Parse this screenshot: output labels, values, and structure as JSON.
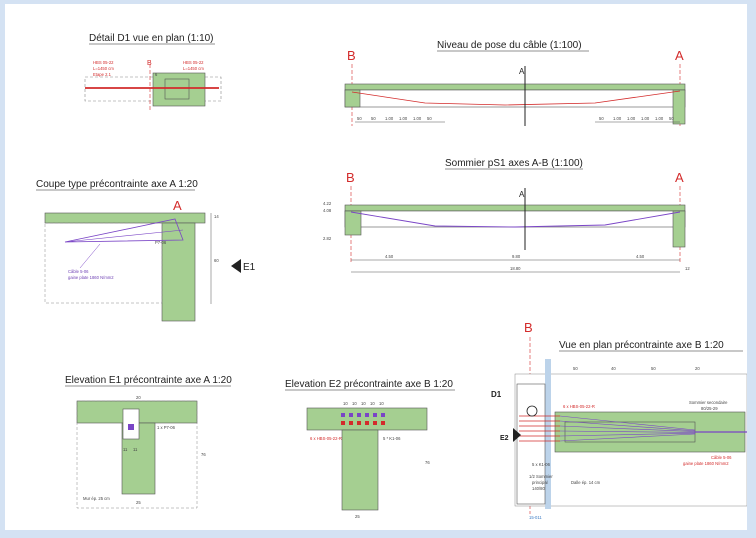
{
  "colors": {
    "frame": "#d4e2f3",
    "concrete": "#a5cf91",
    "concrete_dark": "#6f9f5a",
    "tendon": "#7a45c6",
    "axis_red": "#d32b2b",
    "dim_line": "#555555"
  },
  "views": {
    "detail_d1": {
      "title": "Détail D1  vue en plan (1:10)",
      "axis": "B",
      "anchor_left": "HBS 05-22",
      "anchor_right": "HBS 05-22",
      "length_left": "L=1450 cm",
      "length_right": "L=1450 cm",
      "stage": "Etape 2.1",
      "dim": "6"
    },
    "cable_level": {
      "title": "Niveau de pose du câble (1:100)",
      "axis_left": "B",
      "axis_right": "A",
      "section_mark": "A",
      "dims_left": [
        "50",
        "50",
        "1.00",
        "1.00",
        "1.00",
        "50"
      ],
      "dims_right": [
        "50",
        "1.00",
        "1.00",
        "1.00",
        "1.00",
        "50"
      ]
    },
    "girder_ps1": {
      "title": "Sommier pS1 axes A-B (1:100)",
      "axis_left": "B",
      "axis_right": "A",
      "section_mark": "A",
      "level_top": "4.22",
      "level_mid": "4.08",
      "level_bottom": "2.82",
      "spans": [
        "4.50",
        "9.80",
        "4.50"
      ],
      "total": "18.80",
      "end_dim": "12"
    },
    "section_a": {
      "title": "Coupe type précontrainte axe A 1:20",
      "axis": "A",
      "elevation_mark": "E1",
      "cable_note_1": "Câble 5-06",
      "cable_note_2": "gaine plate 1860 N/mm2",
      "anchor_label": "P7-06",
      "dim_top": "14",
      "dim_side": "60"
    },
    "elevation_e1": {
      "title": "Elevation  E1 précontrainte axe A 1:20",
      "anchor_note": "1 x P7-06",
      "wall_note": "Mur ép. 25 cm",
      "width_top": "20",
      "width_bottom": "25",
      "height": "76",
      "dims": [
        "11",
        "11"
      ]
    },
    "elevation_e2": {
      "title": "Elevation  E2 précontrainte axe B 1:20",
      "anchor_note_left": "6 x HBS-05-22-R",
      "anchor_note_right": "5 * K1-06",
      "width_bottom": "25",
      "height": "76",
      "top_dims": [
        "10",
        "10",
        "10",
        "10",
        "10"
      ]
    },
    "plan_b": {
      "title": "Vue en plan précontrainte axe B 1:20",
      "axis": "B",
      "detail_mark": "D1",
      "elevation_mark": "E2",
      "secondary_beam": "Sommier secondaire",
      "secondary_size": "80/25-29",
      "anchor_note": "6 x HBS-05-22-R",
      "cable_note_1": "Câble 5-06",
      "cable_note_2": "gaine plate 1860 N/mm2",
      "anchor_note_bottom": "5 x K1-06",
      "main_beam_1": "1/2 Sommier",
      "main_beam_2": "principal",
      "main_beam_3": "140/80",
      "slab_note": "Dalle ép. 14 cm",
      "bottom_mark": "15-011",
      "top_dims": [
        "50",
        "40",
        "50",
        "20"
      ]
    }
  }
}
